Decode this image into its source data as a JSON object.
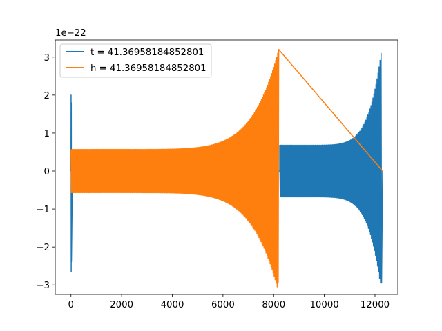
{
  "chart_data": {
    "type": "line",
    "x_ticks": [
      0,
      2000,
      4000,
      6000,
      8000,
      10000,
      12000
    ],
    "x_tick_labels": [
      "0",
      "2000",
      "4000",
      "6000",
      "8000",
      "10000",
      "12000"
    ],
    "y_ticks": [
      -3,
      -2,
      -1,
      0,
      1,
      2,
      3
    ],
    "y_tick_labels": [
      "−3",
      "−2",
      "−1",
      "0",
      "1",
      "2",
      "3"
    ],
    "y_offset_label": "1e−22",
    "xlim": [
      -620,
      12900
    ],
    "ylim": [
      -3.25,
      3.45
    ],
    "grid": false,
    "legend_position": "upper-left",
    "series": [
      {
        "name": "t = 41.36958184852801",
        "color": "#1f77b4",
        "segments": [
          {
            "x_start": 0,
            "x_end": 60,
            "envelope_start": 0.0,
            "envelope_end": 0.0,
            "peak_max": 2.0,
            "peak_min": -2.65
          },
          {
            "x_start": 60,
            "x_end": 8240,
            "envelope_start": 0.0,
            "envelope_end": 0.0
          },
          {
            "x_start": 8240,
            "x_end": 12260,
            "envelope_start": 0.68,
            "envelope_end": 3.2,
            "peak_min": -2.95
          }
        ],
        "final_value": 0.0,
        "final_x": 12300
      },
      {
        "name": "h = 41.36958184852801",
        "color": "#ff7f0e",
        "segments": [
          {
            "x_start": 0,
            "x_end": 8200,
            "envelope_start": 0.57,
            "envelope_end": 3.2,
            "peak_min": -2.95
          }
        ],
        "final_value": 0.0,
        "final_x": 12300
      }
    ]
  }
}
